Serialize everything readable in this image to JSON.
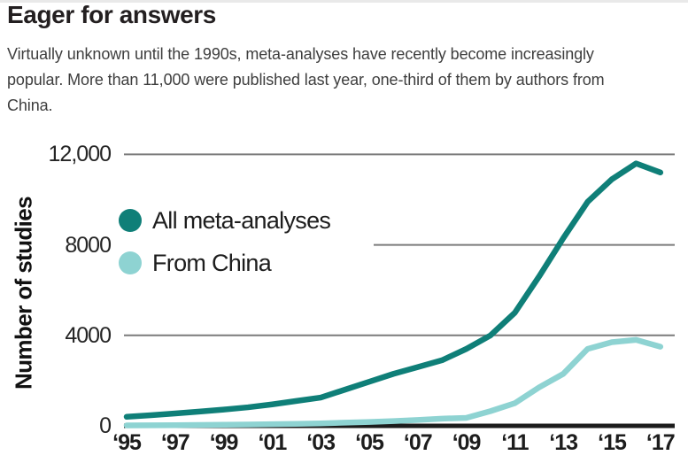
{
  "header": {
    "title": "Eager for answers",
    "description": "Virtually unknown until the 1990s, meta-analyses have recently become increasingly popular. More than 11,000 were published last year, one-third of them by authors from China.",
    "description_lines": [
      "Virtually unknown until the 1990s, meta-analyses have recently become increasingly",
      "popular. More than 11,000 were published last year, one-third of them by authors from",
      "China."
    ]
  },
  "colors": {
    "accent_dark_teal": "#0f7f78",
    "accent_light_teal": "#8ed3d2",
    "gridline": "#7b7b7b",
    "axis": "#1c1c1c",
    "title_text": "#231f20",
    "body_text": "#3e3e3e",
    "top_border": "#e9e9e9",
    "background": "#ffffff"
  },
  "chart_data": {
    "type": "line",
    "title": "Eager for answers",
    "xlabel": "",
    "ylabel": "Number of studies",
    "ylim": [
      0,
      12000
    ],
    "grid": "horizontal",
    "legend_position": "inside-upper-left",
    "x": [
      1995,
      1996,
      1997,
      1998,
      1999,
      2000,
      2001,
      2002,
      2003,
      2004,
      2005,
      2006,
      2007,
      2008,
      2009,
      2010,
      2011,
      2012,
      2013,
      2014,
      2015,
      2016,
      2017
    ],
    "series": [
      {
        "name": "All meta-analyses",
        "color": "#0f7f78",
        "values": [
          400,
          470,
          550,
          630,
          720,
          820,
          950,
          1100,
          1250,
          1600,
          1950,
          2300,
          2600,
          2900,
          3400,
          4000,
          5000,
          6600,
          8300,
          9900,
          10900,
          11600,
          11200
        ]
      },
      {
        "name": "From China",
        "color": "#8ed3d2",
        "values": [
          20,
          25,
          30,
          40,
          50,
          60,
          75,
          90,
          110,
          140,
          170,
          210,
          260,
          320,
          350,
          650,
          1000,
          1700,
          2300,
          3400,
          3700,
          3800,
          3500
        ]
      }
    ],
    "y_ticks": [
      {
        "value": 0,
        "label": "0"
      },
      {
        "value": 4000,
        "label": "4000"
      },
      {
        "value": 8000,
        "label": "8000"
      },
      {
        "value": 12000,
        "label": "12,000"
      }
    ],
    "gridline_values": [
      4000,
      8000,
      12000
    ],
    "x_ticks": [
      {
        "year": 1995,
        "label": "‘95"
      },
      {
        "year": 1997,
        "label": "‘97"
      },
      {
        "year": 1999,
        "label": "‘99"
      },
      {
        "year": 2001,
        "label": "‘01"
      },
      {
        "year": 2003,
        "label": "‘03"
      },
      {
        "year": 2005,
        "label": "‘05"
      },
      {
        "year": 2007,
        "label": "‘07"
      },
      {
        "year": 2009,
        "label": "‘09"
      },
      {
        "year": 2011,
        "label": "‘11"
      },
      {
        "year": 2013,
        "label": "‘13"
      },
      {
        "year": 2015,
        "label": "‘15"
      },
      {
        "year": 2017,
        "label": "‘17"
      }
    ]
  }
}
